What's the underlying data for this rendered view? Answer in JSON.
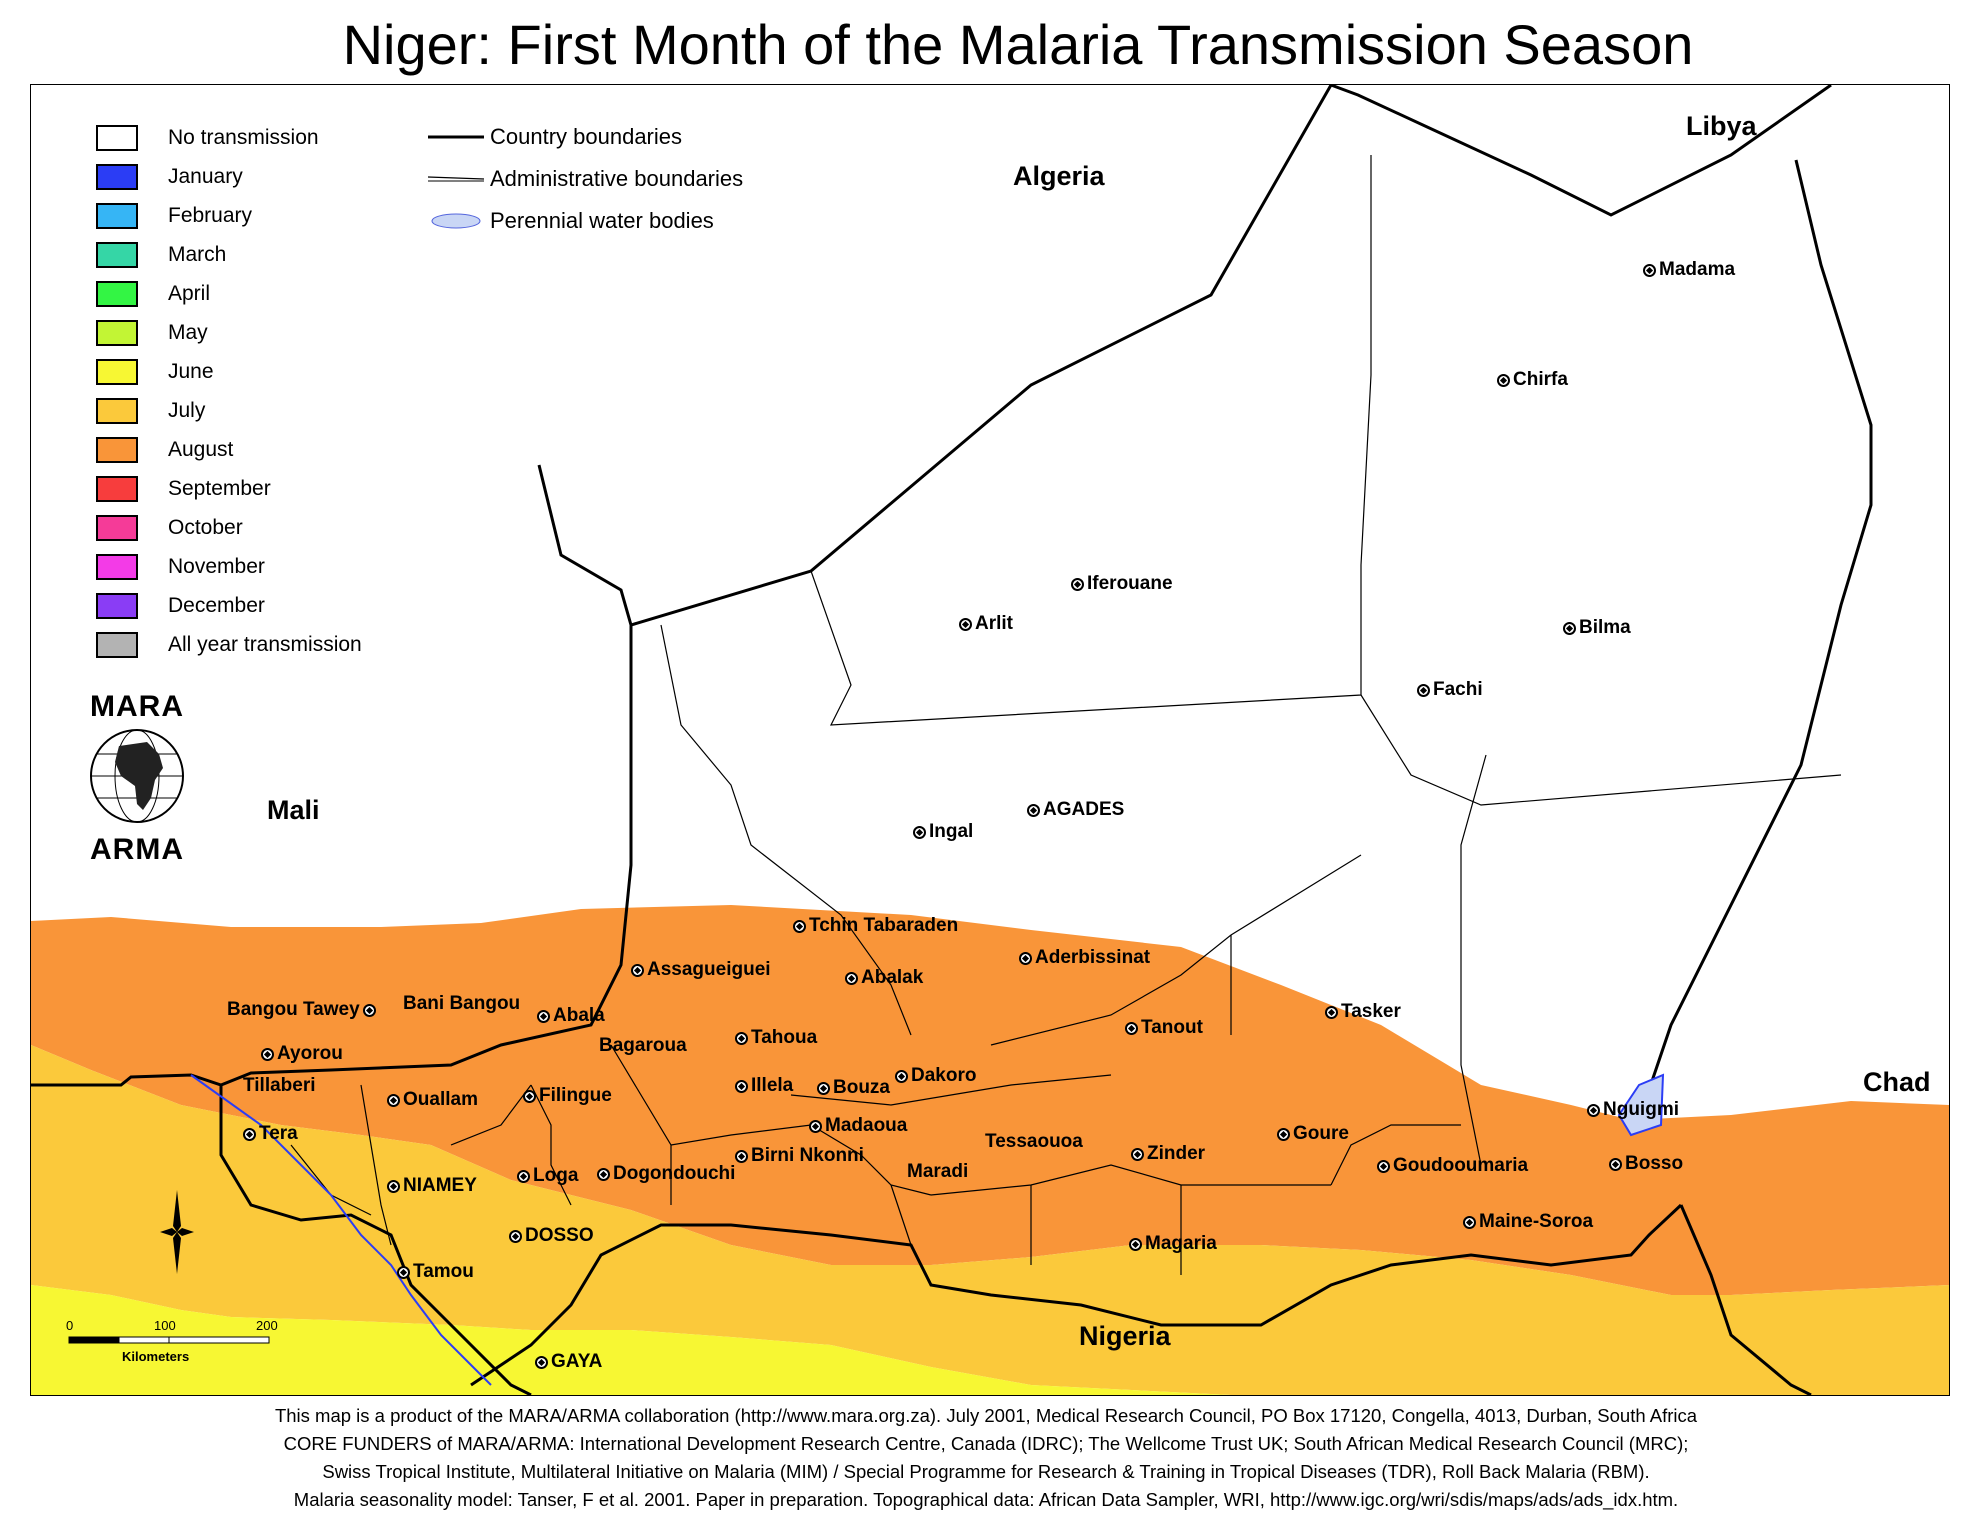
{
  "title": "Niger: First Month of the Malaria Transmission Season",
  "legend": {
    "items": [
      {
        "label": "No transmission",
        "color": "#ffffff"
      },
      {
        "label": "January",
        "color": "#2b3df5"
      },
      {
        "label": "February",
        "color": "#36b5f5"
      },
      {
        "label": "March",
        "color": "#35d6a6"
      },
      {
        "label": "April",
        "color": "#33f544"
      },
      {
        "label": "May",
        "color": "#c2f534"
      },
      {
        "label": "June",
        "color": "#f7f733"
      },
      {
        "label": "July",
        "color": "#fbc93b"
      },
      {
        "label": "August",
        "color": "#f99539"
      },
      {
        "label": "September",
        "color": "#f73d3d"
      },
      {
        "label": "October",
        "color": "#f53b98"
      },
      {
        "label": "November",
        "color": "#f33be7"
      },
      {
        "label": "December",
        "color": "#8a3df5"
      },
      {
        "label": "All year transmission",
        "color": "#b3b3b3"
      }
    ],
    "boundary_items": [
      {
        "label": "Country boundaries"
      },
      {
        "label": "Administrative boundaries"
      },
      {
        "label": "Perennial water bodies"
      }
    ]
  },
  "countries": {
    "algeria": "Algeria",
    "libya": "Libya",
    "mali": "Mali",
    "chad": "Chad",
    "nigeria": "Nigeria"
  },
  "towns": [
    {
      "name": "Madama"
    },
    {
      "name": "Chirfa"
    },
    {
      "name": "Iferouane"
    },
    {
      "name": "Arlit"
    },
    {
      "name": "Bilma"
    },
    {
      "name": "Fachi"
    },
    {
      "name": "Ingal"
    },
    {
      "name": "AGADES"
    },
    {
      "name": "Tchin Tabaraden"
    },
    {
      "name": "Aderbissinat"
    },
    {
      "name": "Assagueiguei"
    },
    {
      "name": "Abalak"
    },
    {
      "name": "Bangou Tawey"
    },
    {
      "name": "Bani Bangou"
    },
    {
      "name": "Abala"
    },
    {
      "name": "Tahoua"
    },
    {
      "name": "Bagaroua"
    },
    {
      "name": "Tanout"
    },
    {
      "name": "Tasker"
    },
    {
      "name": "Ayorou"
    },
    {
      "name": "Tillaberi"
    },
    {
      "name": "Ouallam"
    },
    {
      "name": "Filingue"
    },
    {
      "name": "Illela"
    },
    {
      "name": "Bouza"
    },
    {
      "name": "Dakoro"
    },
    {
      "name": "Madaoua"
    },
    {
      "name": "Tera"
    },
    {
      "name": "Birni Nkonni"
    },
    {
      "name": "Tessaouoa"
    },
    {
      "name": "Zinder"
    },
    {
      "name": "Goure"
    },
    {
      "name": "Goudooumaria"
    },
    {
      "name": "Nguigmi"
    },
    {
      "name": "Bosso"
    },
    {
      "name": "NIAMEY"
    },
    {
      "name": "Loga"
    },
    {
      "name": "Dogondouchi"
    },
    {
      "name": "Maradi"
    },
    {
      "name": "DOSSO"
    },
    {
      "name": "Magaria"
    },
    {
      "name": "Maine-Soroa"
    },
    {
      "name": "Tamou"
    },
    {
      "name": "GAYA"
    }
  ],
  "logo": {
    "top": "MARA",
    "bottom": "ARMA"
  },
  "scale": {
    "ticks": [
      "0",
      "100",
      "200"
    ],
    "unit": "Kilometers"
  },
  "footer": {
    "line1": "This map is a product of the MARA/ARMA collaboration (http://www.mara.org.za).  July 2001, Medical Research Council, PO Box 17120, Congella, 4013, Durban, South Africa",
    "line2": "CORE FUNDERS of MARA/ARMA: International Development Research Centre, Canada (IDRC); The Wellcome Trust UK; South African Medical Research Council (MRC);",
    "line3": "Swiss Tropical Institute, Multilateral Initiative on Malaria (MIM) / Special Programme for Research & Training in Tropical Diseases (TDR), Roll Back Malaria (RBM).",
    "line4": "Malaria seasonality model: Tanser, F et al. 2001. Paper in preparation.    Topographical data: African Data Sampler, WRI, http://www.igc.org/wri/sdis/maps/ads/ads_idx.htm."
  }
}
